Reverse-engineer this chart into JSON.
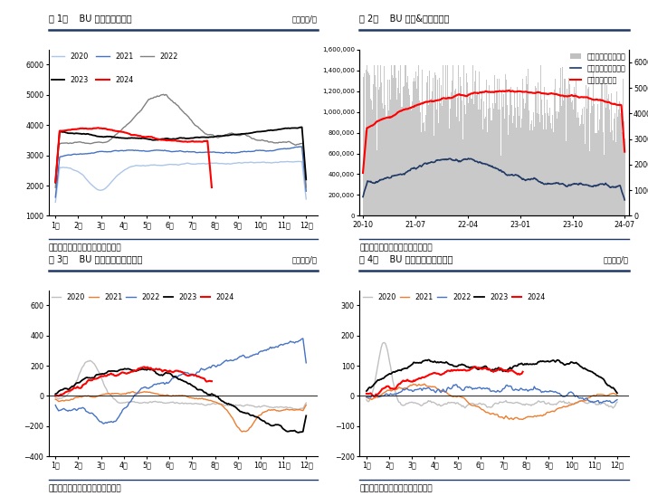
{
  "fig1": {
    "title": "图 1：    BU 主力合约收盘价",
    "unit": "单位：元/吨",
    "source": "数据来源：钓联、海通期货研究所",
    "ylim": [
      1000,
      6500
    ],
    "yticks": [
      1000,
      2000,
      3000,
      4000,
      5000,
      6000
    ],
    "months": [
      "1月",
      "2月",
      "3月",
      "4月",
      "5月",
      "6月",
      "7月",
      "8月",
      "9月",
      "10月",
      "11月",
      "12月"
    ],
    "series": {
      "2020": {
        "color": "#adc6e8",
        "lw": 1.0
      },
      "2021": {
        "color": "#4472c4",
        "lw": 1.0
      },
      "2022": {
        "color": "#808080",
        "lw": 1.0
      },
      "2023": {
        "color": "#000000",
        "lw": 1.3
      },
      "2024": {
        "color": "#ff0000",
        "lw": 1.5
      }
    }
  },
  "fig2": {
    "title": "图 2：    BU 成交&持仓量情况",
    "source": "数据来源：钓联、海通期货研究所",
    "legend": [
      "成交量（左轴，手）",
      "持仓量（左轴，手）",
      "氥青主力收盘价"
    ],
    "bar_color": "#c0c0c0",
    "line_color": "#1f3864",
    "price_color": "#ff0000",
    "ylim_left": [
      0,
      1600000
    ],
    "ylim_right": [
      0,
      6500
    ],
    "yticks_left": [
      0,
      200000,
      400000,
      600000,
      800000,
      1000000,
      1200000,
      1400000
    ],
    "yticks_right": [
      0,
      1000,
      2000,
      3000,
      4000,
      5000,
      6000
    ],
    "xticks": [
      "20-10",
      "21-07",
      "22-04",
      "23-01",
      "23-10",
      "24-07"
    ]
  },
  "fig3": {
    "title": "图 3：    BU 连一与连三合约月差",
    "unit": "单位：元/吨",
    "source": "数据来源：钓联、海通期货研究所",
    "ylim": [
      -400,
      700
    ],
    "yticks": [
      -400,
      -200,
      0,
      200,
      400,
      600
    ],
    "months": [
      "1月",
      "2月",
      "3月",
      "4月",
      "5月",
      "6月",
      "7月",
      "8月",
      "9月",
      "10月",
      "11月",
      "12月"
    ],
    "series": {
      "2020": {
        "color": "#c0c0c0",
        "lw": 1.0
      },
      "2021": {
        "color": "#ed7d31",
        "lw": 1.0
      },
      "2022": {
        "color": "#4472c4",
        "lw": 1.0
      },
      "2023": {
        "color": "#000000",
        "lw": 1.3
      },
      "2024": {
        "color": "#ff0000",
        "lw": 1.5
      }
    }
  },
  "fig4": {
    "title": "图 4：    BU 连二与连三合约月差",
    "unit": "单位：元/吨",
    "source": "数据来源：钓联、海通期货研究所",
    "ylim": [
      -200,
      350
    ],
    "yticks": [
      -200,
      -100,
      0,
      100,
      200,
      300
    ],
    "months": [
      "1月",
      "2月",
      "3月",
      "4月",
      "5月",
      "6月",
      "7月",
      "8月",
      "9月",
      "10月",
      "11月",
      "12月"
    ],
    "series": {
      "2020": {
        "color": "#c0c0c0",
        "lw": 1.0
      },
      "2021": {
        "color": "#ed7d31",
        "lw": 1.0
      },
      "2022": {
        "color": "#4472c4",
        "lw": 1.0
      },
      "2023": {
        "color": "#000000",
        "lw": 1.3
      },
      "2024": {
        "color": "#ff0000",
        "lw": 1.5
      }
    }
  },
  "header_color": "#1f3864",
  "bg_color": "#ffffff"
}
